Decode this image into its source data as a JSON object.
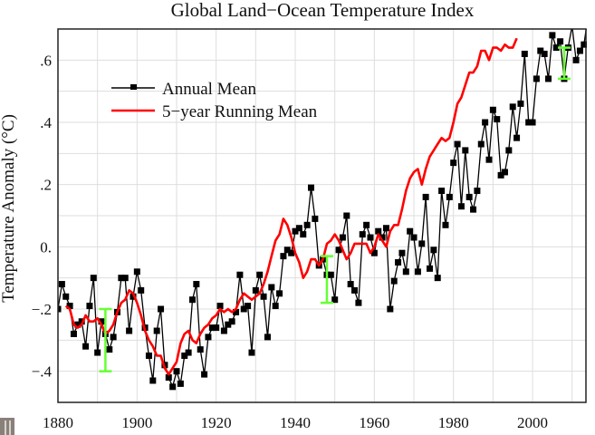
{
  "chart_data": {
    "type": "line",
    "title": "Global Land−Ocean Temperature Index",
    "xlabel": "",
    "ylabel": "Temperature Anomaly (°C)",
    "xlim": [
      1880,
      2013.5
    ],
    "ylim": [
      -0.5,
      0.7
    ],
    "grid": true,
    "legend_position": "top-left",
    "x_ticks": [
      1880,
      1900,
      1920,
      1940,
      1960,
      1980,
      2000
    ],
    "x_tick_labels": [
      "1880",
      "1900",
      "1920",
      "1940",
      "1960",
      "1980",
      "2000"
    ],
    "y_ticks": [
      -0.4,
      -0.2,
      0.0,
      0.2,
      0.4,
      0.6
    ],
    "y_tick_labels": [
      "−.4",
      "−.2",
      "0.",
      ".2",
      ".4",
      ".6"
    ],
    "series": [
      {
        "name": "Annual Mean",
        "color": "#000000",
        "marker": "square",
        "x_start": 1880,
        "values": [
          -0.2,
          -0.12,
          -0.16,
          -0.19,
          -0.28,
          -0.25,
          -0.24,
          -0.32,
          -0.19,
          -0.1,
          -0.34,
          -0.24,
          -0.28,
          -0.33,
          -0.29,
          -0.21,
          -0.1,
          -0.1,
          -0.27,
          -0.16,
          -0.08,
          -0.14,
          -0.26,
          -0.35,
          -0.43,
          -0.27,
          -0.2,
          -0.38,
          -0.42,
          -0.45,
          -0.4,
          -0.44,
          -0.35,
          -0.34,
          -0.17,
          -0.12,
          -0.33,
          -0.41,
          -0.29,
          -0.26,
          -0.26,
          -0.19,
          -0.27,
          -0.25,
          -0.24,
          -0.21,
          -0.09,
          -0.2,
          -0.19,
          -0.34,
          -0.14,
          -0.09,
          -0.16,
          -0.29,
          -0.13,
          -0.19,
          -0.15,
          -0.03,
          -0.01,
          -0.02,
          0.05,
          0.06,
          0.04,
          0.07,
          0.19,
          0.09,
          -0.06,
          -0.04,
          -0.09,
          -0.09,
          -0.17,
          -0.01,
          0.03,
          0.1,
          -0.12,
          -0.14,
          -0.18,
          0.04,
          0.07,
          0.03,
          -0.02,
          0.05,
          0.03,
          0.06,
          -0.2,
          -0.11,
          -0.05,
          -0.02,
          -0.08,
          0.05,
          0.03,
          -0.08,
          0.01,
          0.16,
          -0.07,
          -0.01,
          -0.1,
          0.18,
          0.07,
          0.16,
          0.27,
          0.33,
          0.13,
          0.31,
          0.16,
          0.12,
          0.18,
          0.33,
          0.4,
          0.28,
          0.44,
          0.41,
          0.23,
          0.24,
          0.31,
          0.45,
          0.35,
          0.46,
          0.62,
          0.4,
          0.4,
          0.54,
          0.63,
          0.62,
          0.54,
          0.68,
          0.64,
          0.66,
          0.54,
          0.64,
          0.71,
          0.6,
          0.63,
          0.65,
          0.74
        ]
      },
      {
        "name": "5−year Running Mean",
        "color": "#ff0000",
        "x_start": 1882,
        "values": [
          -0.19,
          -0.2,
          -0.25,
          -0.26,
          -0.25,
          -0.22,
          -0.24,
          -0.24,
          -0.23,
          -0.25,
          -0.28,
          -0.27,
          -0.25,
          -0.21,
          -0.18,
          -0.17,
          -0.14,
          -0.15,
          -0.18,
          -0.22,
          -0.27,
          -0.3,
          -0.32,
          -0.35,
          -0.35,
          -0.39,
          -0.41,
          -0.39,
          -0.37,
          -0.31,
          -0.28,
          -0.27,
          -0.3,
          -0.31,
          -0.28,
          -0.26,
          -0.25,
          -0.23,
          -0.22,
          -0.2,
          -0.21,
          -0.2,
          -0.21,
          -0.2,
          -0.17,
          -0.15,
          -0.16,
          -0.17,
          -0.16,
          -0.15,
          -0.12,
          -0.08,
          -0.03,
          0.02,
          0.04,
          0.09,
          0.07,
          0.03,
          -0.02,
          -0.05,
          -0.1,
          -0.08,
          -0.04,
          -0.04,
          -0.06,
          -0.04,
          0.01,
          0.02,
          0.04,
          0.02,
          -0.01,
          -0.04,
          -0.02,
          0.01,
          0.01,
          0.01,
          0.01,
          -0.02,
          0.0,
          0.04,
          0.02,
          -0.0,
          0.05,
          0.07,
          0.07,
          0.12,
          0.18,
          0.22,
          0.24,
          0.25,
          0.2,
          0.25,
          0.29,
          0.31,
          0.33,
          0.35,
          0.34,
          0.35,
          0.4,
          0.46,
          0.48,
          0.52,
          0.56,
          0.56,
          0.58,
          0.63,
          0.63,
          0.6,
          0.64,
          0.64,
          0.63,
          0.65,
          0.64,
          0.64,
          0.67
        ]
      }
    ],
    "uncertainty_bars": [
      {
        "x": 1892,
        "low": -0.4,
        "high": -0.2,
        "color": "#66ff33"
      },
      {
        "x": 1948,
        "low": -0.18,
        "high": -0.03,
        "color": "#66ff33"
      },
      {
        "x": 2008,
        "low": 0.54,
        "high": 0.64,
        "color": "#66ff33"
      }
    ]
  }
}
